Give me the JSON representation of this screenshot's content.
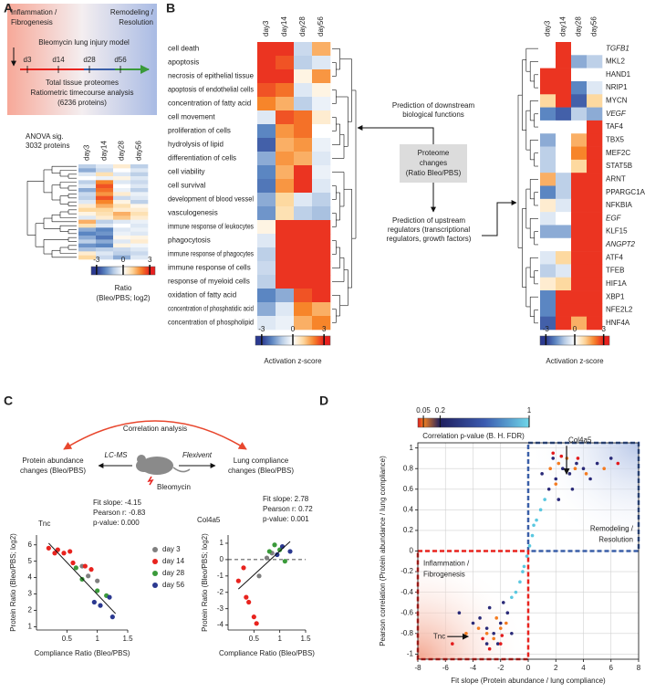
{
  "panel_labels": [
    "A",
    "B",
    "C",
    "D"
  ],
  "panel_a": {
    "phase_left": [
      "Inflammation /",
      "Fibrogenesis"
    ],
    "phase_right": [
      "Remodeling /",
      "Resolution"
    ],
    "model": "Bleomycin lung injury model",
    "timepoints": [
      "d3",
      "d14",
      "d28",
      "d56"
    ],
    "analysis": [
      "Total tissue proteomes",
      "Ratiometric timecourse analysis",
      "(6236 proteins)"
    ],
    "anova": [
      "ANOVA sig.",
      "3032 proteins"
    ],
    "columns": [
      "day3",
      "day14",
      "day28",
      "day56"
    ],
    "column_colors": [
      "#e8231e",
      "#e8231e",
      "#3a5fa8",
      "#3a5fa8"
    ],
    "heatmap": [
      [
        -1,
        -0.5,
        0.5,
        -1
      ],
      [
        -1.5,
        -0.8,
        0,
        -0.5
      ],
      [
        -0.5,
        0.8,
        -0.5,
        -1
      ],
      [
        0,
        -0.3,
        0.3,
        -0.5
      ],
      [
        -1,
        2,
        -0.5,
        -0.8
      ],
      [
        -0.5,
        2.5,
        0,
        -0.5
      ],
      [
        -1.5,
        2.2,
        -0.3,
        -1
      ],
      [
        -0.8,
        1.8,
        0.5,
        -0.3
      ],
      [
        -1,
        2.5,
        -0.8,
        -0.5
      ],
      [
        -0.5,
        2,
        0.3,
        -1
      ],
      [
        0.5,
        1.5,
        0.8,
        0.2
      ],
      [
        1,
        1,
        0.5,
        0.5
      ],
      [
        0.3,
        0.8,
        1.5,
        0.8
      ],
      [
        -0.5,
        0.5,
        1.2,
        0.5
      ],
      [
        1.5,
        -1,
        -0.5,
        -0.3
      ],
      [
        0.8,
        -0.5,
        0,
        -0.5
      ],
      [
        -1.5,
        -2,
        -0.5,
        -0.3
      ],
      [
        -2,
        -1.8,
        -0.3,
        -0.5
      ],
      [
        -1.5,
        -2.2,
        0.2,
        0.3
      ],
      [
        -1,
        -1.5,
        -0.5,
        0.5
      ],
      [
        -1.8,
        -2,
        0.3,
        -0.2
      ],
      [
        -1.2,
        -1,
        -0.8,
        -0.5
      ],
      [
        0.5,
        -0.5,
        -1,
        -0.8
      ],
      [
        1,
        -0.8,
        -1.5,
        -0.5
      ]
    ],
    "colorbar": {
      "lim": [
        -3.6,
        3.6
      ],
      "ticks": [
        -3,
        0,
        3
      ],
      "title": [
        "Ratio",
        "(Bleo/PBS; log2)"
      ]
    }
  },
  "panel_b": {
    "columns": [
      "day3",
      "day14",
      "day28",
      "day56"
    ],
    "column_colors": [
      "#e8231e",
      "#e8231e",
      "#3a5fa8",
      "#3a5fa8"
    ],
    "functions": {
      "rows": [
        "cell death",
        "apoptosis",
        "necrosis of epithelial tissue",
        "apoptosis of endothelial cells",
        "concentration of fatty acid",
        "cell movement",
        "proliferation of cells",
        "hydrolysis of lipid",
        "differentiation of cells",
        "cell viability",
        "cell survival",
        "development of blood vessel",
        "vasculogenesis",
        "immune response of leukocytes",
        "phagocytosis",
        "immune response of phagocytes",
        "immune response of cells",
        "response of myeloid cells",
        "oxidation of fatty acid",
        "concentration of phosphatidic acid",
        "concentration of phospholipid"
      ],
      "values": [
        [
          2.8,
          2.8,
          -0.8,
          1.5
        ],
        [
          2.8,
          2.5,
          -1,
          -0.5
        ],
        [
          2.8,
          2.8,
          0.3,
          1.8
        ],
        [
          2.5,
          2.2,
          -0.5,
          0.3
        ],
        [
          2,
          1.5,
          -1,
          -0.3
        ],
        [
          -0.5,
          2.5,
          2.2,
          0.5
        ],
        [
          -2,
          1.8,
          2.2,
          0
        ],
        [
          -2.5,
          1.5,
          1.8,
          -0.3
        ],
        [
          -1.5,
          1.8,
          1.5,
          -0.5
        ],
        [
          -2,
          1.5,
          2.8,
          -0.3
        ],
        [
          -2.2,
          1.8,
          2.8,
          -0.5
        ],
        [
          -1.5,
          1,
          -0.5,
          -1
        ],
        [
          -1.8,
          0.8,
          -1,
          -1.2
        ],
        [
          0.3,
          2.8,
          2.8,
          2.8
        ],
        [
          -0.5,
          2.8,
          2.8,
          2.8
        ],
        [
          -1,
          2.8,
          2.8,
          2.8
        ],
        [
          -0.8,
          2.8,
          2.8,
          2.8
        ],
        [
          -1,
          2.8,
          2.8,
          2.8
        ],
        [
          -2,
          -1.5,
          2.5,
          2.8
        ],
        [
          -1.5,
          -0.5,
          2,
          1.5
        ],
        [
          -0.5,
          -0.3,
          1.5,
          2
        ]
      ]
    },
    "regulators": {
      "rows": [
        "TGFB1",
        "MKL2",
        "HAND1",
        "NRIP1",
        "MYCN",
        "VEGF",
        "TAF4",
        "TBX5",
        "MEF2C",
        "STAT5B",
        "ARNT",
        "PPARGC1A",
        "NFKBIA",
        "EGF",
        "KLF15",
        "ANGPT2",
        "ATF4",
        "TFEB",
        "HIF1A",
        "XBP1",
        "NFE2L2",
        "HNF4A"
      ],
      "italic": [
        true,
        false,
        false,
        false,
        false,
        true,
        false,
        false,
        false,
        false,
        false,
        false,
        false,
        true,
        false,
        true,
        false,
        false,
        false,
        false,
        false,
        false
      ],
      "values": [
        [
          0,
          2.8,
          0,
          0
        ],
        [
          0,
          2.8,
          -1.5,
          -1
        ],
        [
          2.8,
          2.8,
          0,
          0
        ],
        [
          2.8,
          2.8,
          -2,
          -0.5
        ],
        [
          1,
          2.8,
          -2.5,
          1
        ],
        [
          -2,
          -2.5,
          -1,
          -1.5
        ],
        [
          0,
          0,
          0,
          2.8
        ],
        [
          -1.5,
          0,
          1.5,
          2.8
        ],
        [
          -1,
          0,
          2,
          2.8
        ],
        [
          -1,
          0,
          1,
          2.8
        ],
        [
          1.5,
          -1,
          2.8,
          2.8
        ],
        [
          -2,
          -1,
          2.8,
          2.8
        ],
        [
          0.5,
          -0.5,
          2.8,
          2.8
        ],
        [
          -0.5,
          0,
          2.8,
          2.8
        ],
        [
          -1.5,
          -1.5,
          2.8,
          2.8
        ],
        [
          0,
          0,
          2.8,
          2.8
        ],
        [
          -0.5,
          1,
          2.8,
          2.8
        ],
        [
          -1,
          -0.5,
          2.8,
          2.8
        ],
        [
          0.5,
          1,
          2.8,
          2.8
        ],
        [
          -2,
          2.8,
          2.8,
          2.8
        ],
        [
          -2,
          2.8,
          2.8,
          2.8
        ],
        [
          -2.5,
          2.8,
          1.5,
          2.8
        ]
      ]
    },
    "center_box": [
      "Proteome",
      "changes",
      "(Ratio Bleo/PBS)"
    ],
    "downstream": [
      "Prediction of downstream",
      "biological functions"
    ],
    "upstream": [
      "Prediction of upstream",
      "regulators (transcriptional",
      "regulators, growth factors)"
    ],
    "colorbar": {
      "lim": [
        -3.6,
        3.6
      ],
      "ticks": [
        -3,
        0,
        3
      ],
      "title": "Activation z-score"
    }
  },
  "panel_c": {
    "title": "Correlation analysis",
    "left": [
      "Protein abundance",
      "changes (Bleo/PBS)"
    ],
    "right": [
      "Lung compliance",
      "changes (Bleo/PBS)"
    ],
    "method_left": "LC-MS",
    "method_right": "Flexivent",
    "treatment": "Bleomycin",
    "legend": [
      {
        "name": "day  3",
        "color": "#7f7f7f"
      },
      {
        "name": "day 14",
        "color": "#e8231e"
      },
      {
        "name": "day 28",
        "color": "#3a9a3a"
      },
      {
        "name": "day 56",
        "color": "#2b3990"
      }
    ],
    "charts": [
      {
        "type": "scatter",
        "title": "Tnc",
        "stats": [
          "Fit slope: -4.15",
          "Pearson r: -0.83",
          "p-value: 0.000"
        ],
        "xlabel": "Compliance Ratio (Bleo/PBS)",
        "ylabel": "Protein Ratio (Bleo/PBS; log2)",
        "xlim": [
          0,
          1.5
        ],
        "ylim": [
          0.8,
          6.6
        ],
        "xticks": [
          0.5,
          1,
          1.5
        ],
        "yticks": [
          1,
          2,
          3,
          4,
          5,
          6
        ],
        "series": [
          {
            "color": "#7f7f7f",
            "x": [
              0.75,
              0.85,
              1.0
            ],
            "y": [
              4.7,
              4.1,
              3.8
            ]
          },
          {
            "color": "#e8231e",
            "x": [
              0.2,
              0.35,
              0.45,
              0.3,
              0.6,
              0.55,
              0.8,
              0.9
            ],
            "y": [
              5.8,
              5.7,
              5.5,
              5.5,
              4.9,
              5.6,
              4.7,
              4.5
            ]
          },
          {
            "color": "#3a9a3a",
            "x": [
              0.65,
              0.75,
              1.0,
              1.15
            ],
            "y": [
              4.6,
              3.9,
              3.2,
              2.9
            ]
          },
          {
            "color": "#2b3990",
            "x": [
              0.95,
              1.05,
              1.2,
              1.25
            ],
            "y": [
              2.5,
              2.3,
              2.8,
              1.6
            ]
          }
        ],
        "fit": {
          "x": [
            0.2,
            1.3
          ],
          "y": [
            6.1,
            1.8
          ]
        }
      },
      {
        "type": "scatter",
        "title": "Col4a5",
        "stats": [
          "Fit slope: 2.78",
          "Pearson r: 0.72",
          "p-value: 0.001"
        ],
        "xlabel": "Compliance Ratio (Bleo/PBS)",
        "ylabel": "Protein Ratio (Bleo/PBS; log2)",
        "xlim": [
          0,
          1.5
        ],
        "ylim": [
          -4.3,
          1.5
        ],
        "xticks": [
          0.5,
          1,
          1.5
        ],
        "yticks": [
          1,
          0,
          -1,
          -2,
          -3,
          -4
        ],
        "reference_line": 0,
        "series": [
          {
            "color": "#7f7f7f",
            "x": [
              0.6,
              0.75,
              0.85
            ],
            "y": [
              -1,
              0.1,
              0.4
            ]
          },
          {
            "color": "#e8231e",
            "x": [
              0.2,
              0.35,
              0.4,
              0.5,
              0.55,
              0.3
            ],
            "y": [
              -1.3,
              -2.3,
              -2.6,
              -3.5,
              -3.9,
              -0.5
            ]
          },
          {
            "color": "#3a9a3a",
            "x": [
              0.8,
              0.9,
              1.0,
              1.1
            ],
            "y": [
              0.5,
              0.9,
              0.6,
              -0.1
            ]
          },
          {
            "color": "#2b3990",
            "x": [
              0.95,
              1.2,
              1.05
            ],
            "y": [
              0.3,
              0.5,
              0.8
            ]
          }
        ],
        "fit": {
          "x": [
            0.2,
            1.2
          ],
          "y": [
            -1.8,
            1.1
          ]
        }
      }
    ]
  },
  "panel_d": {
    "type": "scatter",
    "colorbar": {
      "title": "Correlation p-value (B. H. FDR)",
      "lim": [
        0,
        1
      ],
      "ticks": [
        0.05,
        0.2,
        1
      ]
    },
    "xlabel": "Fit slope (Protein abundance / lung compliance)",
    "ylabel": "Pearson correlation (Protein abundance / lung compliance)",
    "xlim": [
      -8,
      8
    ],
    "ylim": [
      -1.05,
      1.05
    ],
    "xticks": [
      -8,
      -6,
      -4,
      -2,
      0,
      2,
      4,
      6,
      8
    ],
    "yticks": [
      -1,
      -0.8,
      -0.6,
      -0.4,
      -0.2,
      0,
      0.2,
      0.4,
      0.6,
      0.8,
      1
    ],
    "grid": true,
    "split": [
      0,
      0
    ],
    "regions": {
      "upper": [
        "Remodeling /",
        "Resolution"
      ],
      "lower": [
        "Inflammation /",
        "Fibrogenesis"
      ]
    },
    "annotations": [
      {
        "text": "Col4a5",
        "x": 2.78,
        "y": 0.72
      },
      {
        "text": "Tnc",
        "x": -4.15,
        "y": -0.83
      }
    ],
    "series": [
      {
        "color": "#5bc8e0",
        "x": [
          -0.3,
          0.3,
          -0.6,
          0.6,
          -0.9,
          0.9,
          0.1,
          -0.1,
          1.2,
          -1.2,
          0.4,
          -0.4
        ],
        "y": [
          -0.15,
          0.15,
          -0.3,
          0.3,
          -0.4,
          0.4,
          0.05,
          -0.05,
          0.5,
          -0.45,
          0.25,
          -0.2
        ]
      },
      {
        "color": "#2a2a78",
        "x": [
          1.5,
          2,
          2.5,
          3,
          3.5,
          4,
          1.8,
          2.2,
          5,
          6,
          1,
          3.2,
          4.5,
          -1.5,
          -2,
          -2.5,
          -3,
          -3.5,
          -1.8,
          -2.2,
          -4,
          -5,
          -1.2,
          -3,
          -2.8
        ],
        "y": [
          0.6,
          0.7,
          0.8,
          0.75,
          0.85,
          0.8,
          0.9,
          0.5,
          0.85,
          0.9,
          0.75,
          0.6,
          0.7,
          -0.6,
          -0.7,
          -0.8,
          -0.75,
          -0.65,
          -0.5,
          -0.9,
          -0.7,
          -0.6,
          -0.8,
          -0.9,
          -0.55
        ]
      },
      {
        "color": "#f47b20",
        "x": [
          1.6,
          2.2,
          2.8,
          3.4,
          4.2,
          5.5,
          2,
          -2,
          -2.5,
          -3,
          -3.6,
          -1.6,
          -4.5,
          -2.3
        ],
        "y": [
          0.8,
          0.85,
          0.9,
          0.8,
          0.75,
          0.8,
          0.65,
          -0.75,
          -0.85,
          -0.8,
          -0.75,
          -0.7,
          -0.8,
          -0.65
        ]
      },
      {
        "color": "#e31a1c",
        "x": [
          1.8,
          2.4,
          3.6,
          6.5,
          -2,
          -2.8,
          -3.3,
          -5.5,
          -1.9
        ],
        "y": [
          0.95,
          0.92,
          0.9,
          0.85,
          -0.9,
          -0.95,
          -0.85,
          -0.9,
          -0.82
        ]
      }
    ]
  }
}
